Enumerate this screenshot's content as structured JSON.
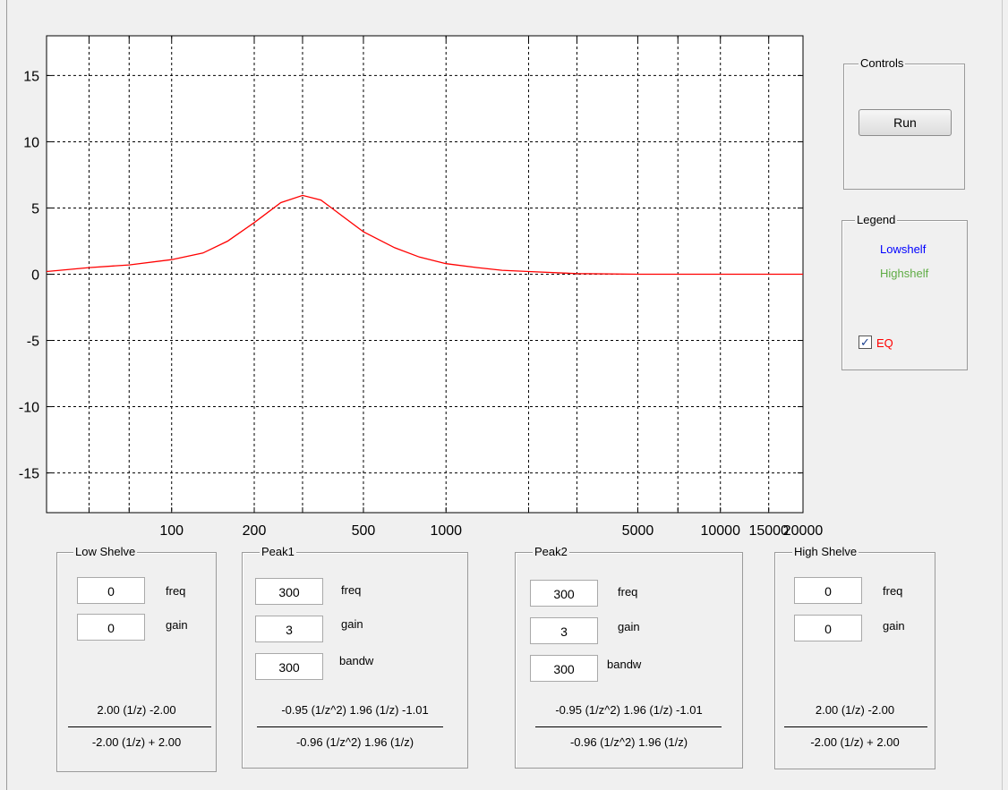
{
  "colors": {
    "curve": "#ff0000",
    "lowshelf": "#0000ff",
    "highshelf": "#5fac45",
    "eq": "#ff0000"
  },
  "chart_data": {
    "type": "line",
    "xscale": "log",
    "xlim": [
      35,
      20000
    ],
    "ylim": [
      -18,
      18
    ],
    "grid": true,
    "xticks": [
      {
        "v": 50,
        "label": ""
      },
      {
        "v": 70,
        "label": ""
      },
      {
        "v": 100,
        "label": "100"
      },
      {
        "v": 200,
        "label": "200"
      },
      {
        "v": 300,
        "label": ""
      },
      {
        "v": 500,
        "label": "500"
      },
      {
        "v": 1000,
        "label": "1000"
      },
      {
        "v": 2000,
        "label": ""
      },
      {
        "v": 3000,
        "label": ""
      },
      {
        "v": 5000,
        "label": "5000"
      },
      {
        "v": 7000,
        "label": ""
      },
      {
        "v": 10000,
        "label": "10000"
      },
      {
        "v": 15000,
        "label": "15000"
      },
      {
        "v": 20000,
        "label": "20000"
      }
    ],
    "yticks": [
      {
        "v": 15,
        "label": "15"
      },
      {
        "v": 10,
        "label": "10"
      },
      {
        "v": 5,
        "label": "5"
      },
      {
        "v": 0,
        "label": "0"
      },
      {
        "v": -5,
        "label": "-5"
      },
      {
        "v": -10,
        "label": "-10"
      },
      {
        "v": -15,
        "label": "-15"
      }
    ],
    "series": [
      {
        "x": [
          35,
          50,
          70,
          100,
          130,
          160,
          200,
          250,
          300,
          350,
          400,
          500,
          650,
          800,
          1000,
          1300,
          1600,
          2000,
          3000,
          5000,
          10000,
          20000
        ],
        "y": [
          0.2,
          0.5,
          0.7,
          1.1,
          1.6,
          2.5,
          3.9,
          5.4,
          5.95,
          5.6,
          4.7,
          3.2,
          2.0,
          1.3,
          0.8,
          0.5,
          0.3,
          0.2,
          0.05,
          0.0,
          0.0,
          0.0
        ]
      }
    ]
  },
  "panels": {
    "low": {
      "title": "Low Shelve",
      "freq": "0",
      "gain": "0",
      "freq_label": "freq",
      "gain_label": "gain",
      "num": "2.00 (1/z)  -2.00",
      "den": "-2.00 (1/z) + 2.00"
    },
    "peak1": {
      "title": "Peak1",
      "freq": "300",
      "gain": "3",
      "bandw": "300",
      "freq_label": "freq",
      "gain_label": "gain",
      "bandw_label": "bandw",
      "num": "-0.95 (1/z^2) 1.96 (1/z)  -1.01",
      "den": "-0.96 (1/z^2) 1.96 (1/z)"
    },
    "peak2": {
      "title": "Peak2",
      "freq": "300",
      "gain": "3",
      "bandw": "300",
      "freq_label": "freq",
      "gain_label": "gain",
      "bandw_label": "bandw",
      "num": "-0.95 (1/z^2) 1.96 (1/z)  -1.01",
      "den": "-0.96 (1/z^2) 1.96 (1/z)"
    },
    "high": {
      "title": "High Shelve",
      "freq": "0",
      "gain": "0",
      "freq_label": "freq",
      "gain_label": "gain",
      "num": "2.00 (1/z)  -2.00",
      "den": "-2.00 (1/z) + 2.00"
    }
  },
  "controls": {
    "title": "Controls",
    "run_label": "Run"
  },
  "legend": {
    "title": "Legend",
    "lowshelf": "Lowshelf",
    "highshelf": "Highshelf",
    "eq": "EQ",
    "eq_checked": true,
    "check_mark": "✓"
  }
}
